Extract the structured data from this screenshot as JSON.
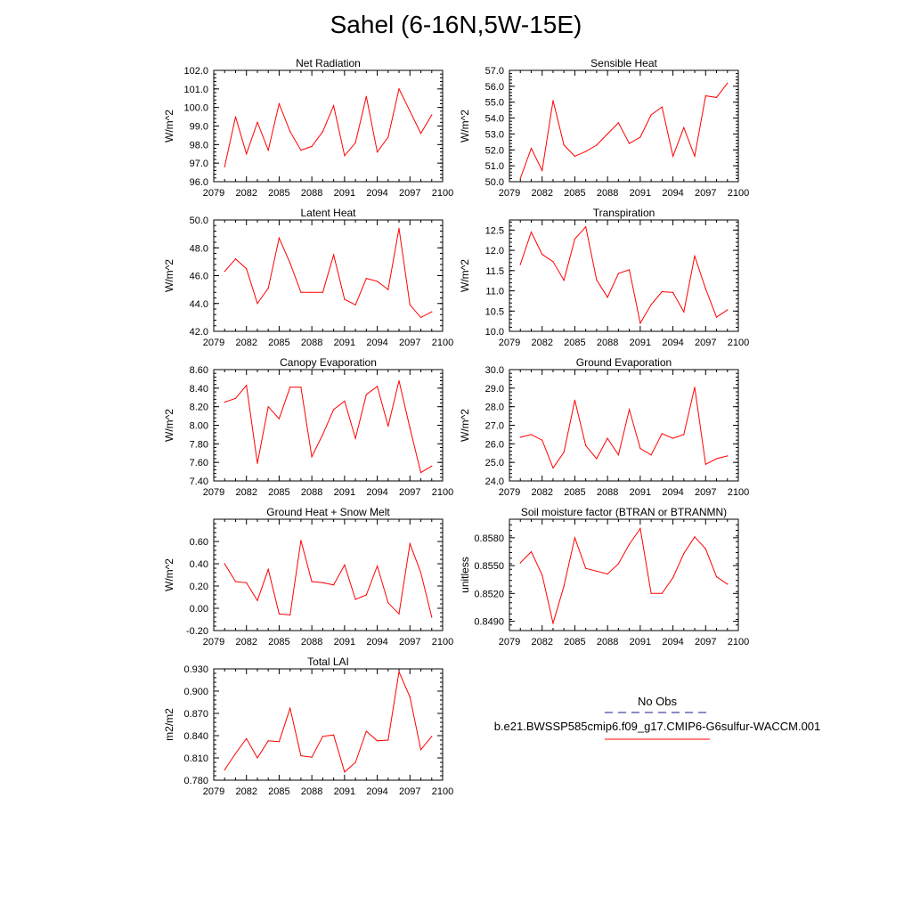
{
  "title": "Sahel (6-16N,5W-15E)",
  "colors": {
    "model_line": "#ff0000",
    "obs_line": "#1a1a8c",
    "axis": "#000000"
  },
  "x_tick_labels": [
    "2079",
    "2082",
    "2085",
    "2088",
    "2091",
    "2094",
    "2097",
    "2100"
  ],
  "legend": {
    "obs_label": "No Obs",
    "model_label": "b.e21.BWSSP585cmip6.f09_g17.CMIP6-G6sulfur-WACCM.001"
  },
  "chart_data": [
    {
      "type": "line",
      "title": "Net Radiation",
      "ylabel": "W/m^2",
      "xlim": [
        2079,
        2100
      ],
      "ylim": [
        96.0,
        102.0
      ],
      "y_ticks": [
        "96.0",
        "97.0",
        "98.0",
        "99.0",
        "100.0",
        "101.0",
        "102.0"
      ],
      "x": [
        2080,
        2081,
        2082,
        2083,
        2084,
        2085,
        2086,
        2087,
        2088,
        2089,
        2090,
        2091,
        2092,
        2093,
        2094,
        2095,
        2096,
        2097,
        2098,
        2099
      ],
      "series": [
        {
          "values": [
            96.8,
            99.5,
            97.5,
            99.2,
            97.7,
            100.2,
            98.7,
            97.7,
            97.9,
            98.7,
            100.1,
            97.4,
            98.1,
            100.6,
            97.6,
            98.4,
            101.0,
            99.8,
            98.6,
            99.6
          ]
        }
      ]
    },
    {
      "type": "line",
      "title": "Sensible Heat",
      "ylabel": "W/m^2",
      "xlim": [
        2079,
        2100
      ],
      "ylim": [
        50.0,
        57.0
      ],
      "y_ticks": [
        "50.0",
        "51.0",
        "52.0",
        "53.0",
        "54.0",
        "55.0",
        "56.0",
        "57.0"
      ],
      "x": [
        2080,
        2081,
        2082,
        2083,
        2084,
        2085,
        2086,
        2087,
        2088,
        2089,
        2090,
        2091,
        2092,
        2093,
        2094,
        2095,
        2096,
        2097,
        2098,
        2099
      ],
      "series": [
        {
          "values": [
            50.2,
            52.1,
            50.7,
            55.1,
            52.3,
            51.6,
            51.9,
            52.3,
            53.0,
            53.7,
            52.4,
            52.8,
            54.2,
            54.7,
            51.6,
            53.4,
            51.6,
            55.4,
            55.3,
            56.2
          ]
        }
      ]
    },
    {
      "type": "line",
      "title": "Latent Heat",
      "ylabel": "W/m^2",
      "xlim": [
        2079,
        2100
      ],
      "ylim": [
        42.0,
        50.0
      ],
      "y_ticks": [
        "42.0",
        "44.0",
        "46.0",
        "48.0",
        "50.0"
      ],
      "x": [
        2080,
        2081,
        2082,
        2083,
        2084,
        2085,
        2086,
        2087,
        2088,
        2089,
        2090,
        2091,
        2092,
        2093,
        2094,
        2095,
        2096,
        2097,
        2098,
        2099
      ],
      "series": [
        {
          "values": [
            46.3,
            47.2,
            46.5,
            44.0,
            45.1,
            48.7,
            46.9,
            44.8,
            44.8,
            44.8,
            47.5,
            44.3,
            43.9,
            45.8,
            45.6,
            45.0,
            49.4,
            43.9,
            43.0,
            43.4
          ]
        }
      ]
    },
    {
      "type": "line",
      "title": "Transpiration",
      "ylabel": "W/m^2",
      "xlim": [
        2079,
        2100
      ],
      "ylim": [
        10.0,
        12.75
      ],
      "y_ticks": [
        "10.0",
        "10.5",
        "11.0",
        "11.5",
        "12.0",
        "12.5"
      ],
      "x": [
        2080,
        2081,
        2082,
        2083,
        2084,
        2085,
        2086,
        2087,
        2088,
        2089,
        2090,
        2091,
        2092,
        2093,
        2094,
        2095,
        2096,
        2097,
        2098,
        2099
      ],
      "series": [
        {
          "values": [
            11.65,
            12.45,
            11.9,
            11.72,
            11.26,
            12.28,
            12.58,
            11.27,
            10.84,
            11.43,
            11.52,
            10.2,
            10.66,
            10.98,
            10.96,
            10.48,
            11.86,
            11.05,
            10.35,
            10.53
          ]
        }
      ]
    },
    {
      "type": "line",
      "title": "Canopy Evaporation",
      "ylabel": "W/m^2",
      "xlim": [
        2079,
        2100
      ],
      "ylim": [
        7.4,
        8.6
      ],
      "y_ticks": [
        "7.40",
        "7.60",
        "7.80",
        "8.00",
        "8.20",
        "8.40",
        "8.60"
      ],
      "x": [
        2080,
        2081,
        2082,
        2083,
        2084,
        2085,
        2086,
        2087,
        2088,
        2089,
        2090,
        2091,
        2092,
        2093,
        2094,
        2095,
        2096,
        2097,
        2098,
        2099
      ],
      "series": [
        {
          "values": [
            8.25,
            8.29,
            8.43,
            7.59,
            8.2,
            8.07,
            8.41,
            8.41,
            7.66,
            7.9,
            8.17,
            8.26,
            7.86,
            8.33,
            8.42,
            7.99,
            8.48,
            7.97,
            7.49,
            7.56
          ]
        }
      ]
    },
    {
      "type": "line",
      "title": "Ground Evaporation",
      "ylabel": "W/m^2",
      "xlim": [
        2079,
        2100
      ],
      "ylim": [
        24.0,
        30.0
      ],
      "y_ticks": [
        "24.0",
        "25.0",
        "26.0",
        "27.0",
        "28.0",
        "29.0",
        "30.0"
      ],
      "x": [
        2080,
        2081,
        2082,
        2083,
        2084,
        2085,
        2086,
        2087,
        2088,
        2089,
        2090,
        2091,
        2092,
        2093,
        2094,
        2095,
        2096,
        2097,
        2098,
        2099
      ],
      "series": [
        {
          "values": [
            26.35,
            26.5,
            26.2,
            24.7,
            25.55,
            28.35,
            25.9,
            25.2,
            26.3,
            25.4,
            27.85,
            25.75,
            25.4,
            26.55,
            26.3,
            26.5,
            29.05,
            24.9,
            25.2,
            25.35
          ]
        }
      ]
    },
    {
      "type": "line",
      "title": "Ground Heat + Snow Melt",
      "ylabel": "W/m^2",
      "xlim": [
        2079,
        2100
      ],
      "ylim": [
        -0.2,
        0.8
      ],
      "y_ticks": [
        "-0.20",
        "0.00",
        "0.20",
        "0.40",
        "0.60"
      ],
      "x": [
        2080,
        2081,
        2082,
        2083,
        2084,
        2085,
        2086,
        2087,
        2088,
        2089,
        2090,
        2091,
        2092,
        2093,
        2094,
        2095,
        2096,
        2097,
        2098,
        2099
      ],
      "series": [
        {
          "values": [
            0.4,
            0.24,
            0.23,
            0.07,
            0.35,
            -0.05,
            -0.06,
            0.61,
            0.24,
            0.23,
            0.21,
            0.39,
            0.08,
            0.12,
            0.38,
            0.05,
            -0.05,
            0.58,
            0.32,
            -0.08
          ]
        }
      ]
    },
    {
      "type": "line",
      "title": "Soil moisture factor (BTRAN or BTRANMN)",
      "ylabel": "unitless",
      "xlim": [
        2079,
        2100
      ],
      "ylim": [
        0.848,
        0.86
      ],
      "y_ticks": [
        "0.8490",
        "0.8520",
        "0.8550",
        "0.8580"
      ],
      "x": [
        2080,
        2081,
        2082,
        2083,
        2084,
        2085,
        2086,
        2087,
        2088,
        2089,
        2090,
        2091,
        2092,
        2093,
        2094,
        2095,
        2096,
        2097,
        2098,
        2099
      ],
      "series": [
        {
          "values": [
            0.8553,
            0.8565,
            0.854,
            0.8488,
            0.8528,
            0.858,
            0.8547,
            0.8544,
            0.8541,
            0.8552,
            0.8573,
            0.859,
            0.852,
            0.852,
            0.8537,
            0.8563,
            0.8581,
            0.8568,
            0.8538,
            0.853
          ]
        }
      ]
    },
    {
      "type": "line",
      "title": "Total LAI",
      "ylabel": "m2/m2",
      "xlim": [
        2079,
        2100
      ],
      "ylim": [
        0.78,
        0.93
      ],
      "y_ticks": [
        "0.780",
        "0.810",
        "0.840",
        "0.870",
        "0.900",
        "0.930"
      ],
      "x": [
        2080,
        2081,
        2082,
        2083,
        2084,
        2085,
        2086,
        2087,
        2088,
        2089,
        2090,
        2091,
        2092,
        2093,
        2094,
        2095,
        2096,
        2097,
        2098,
        2099
      ],
      "series": [
        {
          "values": [
            0.794,
            0.816,
            0.836,
            0.81,
            0.833,
            0.832,
            0.877,
            0.813,
            0.811,
            0.839,
            0.841,
            0.791,
            0.804,
            0.846,
            0.833,
            0.834,
            0.926,
            0.892,
            0.821,
            0.839
          ]
        }
      ]
    }
  ]
}
